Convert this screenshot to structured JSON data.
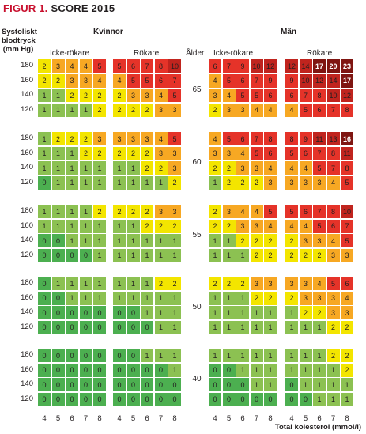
{
  "figure": {
    "prefix": "FIGUR 1.",
    "name": "SCORE 2015"
  },
  "y_axis_label": [
    "Systoliskt",
    "blodtryck",
    "(mm Hg)"
  ],
  "sex_labels": {
    "women": "Kvinnor",
    "men": "Män"
  },
  "smoking_labels": {
    "non_smoker": "Icke-rökare",
    "smoker": "Rökare"
  },
  "age_label": "Ålder",
  "x_axis_label": "Total kolesterol (mmol/l)",
  "chart_data": {
    "type": "heatmap",
    "title": "SCORE 2015",
    "xlabel": "Total kolesterol (mmol/l)",
    "ylabel": "Systoliskt blodtryck (mm Hg)",
    "cholesterol": [
      "4",
      "5",
      "6",
      "7",
      "8"
    ],
    "bp": [
      "180",
      "160",
      "140",
      "120"
    ],
    "legend": "none",
    "color_scale": [
      {
        "max": 1,
        "color": "#8cc152"
      },
      {
        "max": 2,
        "color": "#f3e500"
      },
      {
        "max": 4,
        "color": "#f7a823"
      },
      {
        "max": 9,
        "color": "#e53329"
      },
      {
        "max": 14,
        "color": "#c0241e"
      },
      {
        "max": 99,
        "color": "#7f1511"
      }
    ],
    "zero_color": "#4caf50",
    "groups": [
      {
        "age": "65",
        "women_nonsmoker": [
          [
            2,
            3,
            4,
            4,
            5
          ],
          [
            2,
            2,
            3,
            3,
            4
          ],
          [
            1,
            1,
            2,
            2,
            2
          ],
          [
            1,
            1,
            1,
            1,
            2
          ]
        ],
        "women_smoker": [
          [
            5,
            6,
            7,
            8,
            10
          ],
          [
            4,
            5,
            5,
            6,
            7
          ],
          [
            2,
            3,
            3,
            4,
            5
          ],
          [
            2,
            2,
            2,
            3,
            3
          ]
        ],
        "men_nonsmoker": [
          [
            6,
            7,
            9,
            10,
            12
          ],
          [
            4,
            5,
            6,
            7,
            9
          ],
          [
            3,
            4,
            5,
            5,
            6
          ],
          [
            2,
            3,
            3,
            4,
            4
          ]
        ],
        "men_smoker": [
          [
            12,
            14,
            17,
            20,
            23
          ],
          [
            9,
            10,
            12,
            14,
            17
          ],
          [
            6,
            7,
            8,
            10,
            12
          ],
          [
            4,
            5,
            6,
            7,
            8
          ]
        ]
      },
      {
        "age": "60",
        "women_nonsmoker": [
          [
            1,
            2,
            2,
            2,
            3
          ],
          [
            1,
            1,
            1,
            2,
            2
          ],
          [
            1,
            1,
            1,
            1,
            1
          ],
          [
            0,
            1,
            1,
            1,
            1
          ]
        ],
        "women_smoker": [
          [
            3,
            3,
            3,
            4,
            5
          ],
          [
            2,
            2,
            2,
            3,
            3
          ],
          [
            1,
            1,
            2,
            2,
            3
          ],
          [
            1,
            1,
            1,
            1,
            2
          ]
        ],
        "men_nonsmoker": [
          [
            4,
            5,
            6,
            7,
            8
          ],
          [
            3,
            3,
            4,
            5,
            6
          ],
          [
            2,
            2,
            3,
            3,
            4
          ],
          [
            1,
            2,
            2,
            2,
            3
          ]
        ],
        "men_smoker": [
          [
            8,
            9,
            11,
            13,
            16
          ],
          [
            5,
            6,
            7,
            8,
            11
          ],
          [
            4,
            4,
            5,
            7,
            8
          ],
          [
            3,
            3,
            3,
            4,
            5
          ]
        ]
      },
      {
        "age": "55",
        "women_nonsmoker": [
          [
            1,
            1,
            1,
            1,
            2
          ],
          [
            1,
            1,
            1,
            1,
            1
          ],
          [
            0,
            0,
            1,
            1,
            1
          ],
          [
            0,
            0,
            0,
            0,
            1
          ]
        ],
        "women_smoker": [
          [
            2,
            2,
            2,
            3,
            3
          ],
          [
            1,
            1,
            2,
            2,
            2
          ],
          [
            1,
            1,
            1,
            1,
            1
          ],
          [
            1,
            1,
            1,
            1,
            1
          ]
        ],
        "men_nonsmoker": [
          [
            2,
            3,
            4,
            4,
            5
          ],
          [
            2,
            2,
            3,
            3,
            4
          ],
          [
            1,
            1,
            2,
            2,
            2
          ],
          [
            1,
            1,
            1,
            2,
            2
          ]
        ],
        "men_smoker": [
          [
            5,
            6,
            7,
            8,
            10
          ],
          [
            4,
            4,
            5,
            6,
            7
          ],
          [
            2,
            3,
            3,
            4,
            5
          ],
          [
            2,
            2,
            2,
            3,
            3
          ]
        ]
      },
      {
        "age": "50",
        "women_nonsmoker": [
          [
            0,
            1,
            1,
            1,
            1
          ],
          [
            0,
            0,
            1,
            1,
            1
          ],
          [
            0,
            0,
            0,
            0,
            0
          ],
          [
            0,
            0,
            0,
            0,
            0
          ]
        ],
        "women_smoker": [
          [
            1,
            1,
            1,
            2,
            2
          ],
          [
            1,
            1,
            1,
            1,
            1
          ],
          [
            0,
            0,
            1,
            1,
            1
          ],
          [
            0,
            0,
            0,
            1,
            1
          ]
        ],
        "men_nonsmoker": [
          [
            2,
            2,
            2,
            3,
            3
          ],
          [
            1,
            1,
            1,
            2,
            2
          ],
          [
            1,
            1,
            1,
            1,
            1
          ],
          [
            1,
            1,
            1,
            1,
            1
          ]
        ],
        "men_smoker": [
          [
            3,
            3,
            4,
            5,
            6
          ],
          [
            2,
            3,
            3,
            3,
            4
          ],
          [
            1,
            2,
            2,
            3,
            3
          ],
          [
            1,
            1,
            1,
            2,
            2
          ]
        ]
      },
      {
        "age": "40",
        "women_nonsmoker": [
          [
            0,
            0,
            0,
            0,
            0
          ],
          [
            0,
            0,
            0,
            0,
            0
          ],
          [
            0,
            0,
            0,
            0,
            0
          ],
          [
            0,
            0,
            0,
            0,
            0
          ]
        ],
        "women_smoker": [
          [
            0,
            0,
            1,
            1,
            1
          ],
          [
            0,
            0,
            0,
            0,
            1
          ],
          [
            0,
            0,
            0,
            0,
            0
          ],
          [
            0,
            0,
            0,
            0,
            0
          ]
        ],
        "men_nonsmoker": [
          [
            1,
            1,
            1,
            1,
            1
          ],
          [
            0,
            0,
            1,
            1,
            1
          ],
          [
            0,
            0,
            0,
            1,
            1
          ],
          [
            0,
            0,
            0,
            0,
            0
          ]
        ],
        "men_smoker": [
          [
            1,
            1,
            1,
            2,
            2
          ],
          [
            1,
            1,
            1,
            1,
            2
          ],
          [
            0,
            1,
            1,
            1,
            1
          ],
          [
            0,
            0,
            1,
            1,
            1
          ]
        ]
      }
    ]
  }
}
